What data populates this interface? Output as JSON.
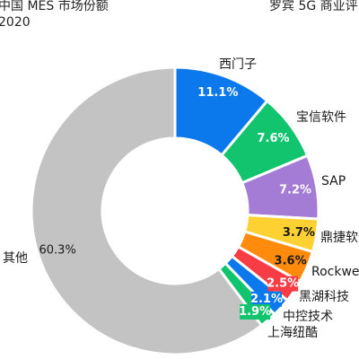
{
  "header": {
    "title": "中国 MES 市场份额",
    "year": "2020",
    "source": "罗宾 5G 商业评"
  },
  "chart_data": {
    "type": "pie",
    "style": "donut",
    "title": "中国 MES 市场份额",
    "subtitle": "2020",
    "start": "top",
    "direction": "clockwise",
    "slices": [
      {
        "label": "西门子",
        "value": 11.1,
        "value_label": "11.1%",
        "color": "#0b79ec"
      },
      {
        "label": "宝信软件",
        "value": 7.6,
        "value_label": "7.6%",
        "color": "#13c46e"
      },
      {
        "label": "SAP",
        "value": 7.2,
        "value_label": "7.2%",
        "color": "#a57cd5"
      },
      {
        "label": "鼎捷软件",
        "value": 3.7,
        "value_label": "3.7%",
        "color": "#fdd132"
      },
      {
        "label": "Rockwell",
        "value": 3.6,
        "value_label": "3.6%",
        "color": "#ff8b0d"
      },
      {
        "label": "黑湖科技",
        "value": 2.5,
        "value_label": "2.5%",
        "color": "#f83c46"
      },
      {
        "label": "中控技术",
        "value": 2.1,
        "value_label": "2.1%",
        "color": "#0b79ec"
      },
      {
        "label": "上海纽酷",
        "value": 1.9,
        "value_label": "1.9%",
        "color": "#13c46e"
      },
      {
        "label": "其他",
        "value": 60.3,
        "value_label": "60.3%",
        "color": "#c3c3c3"
      }
    ]
  }
}
